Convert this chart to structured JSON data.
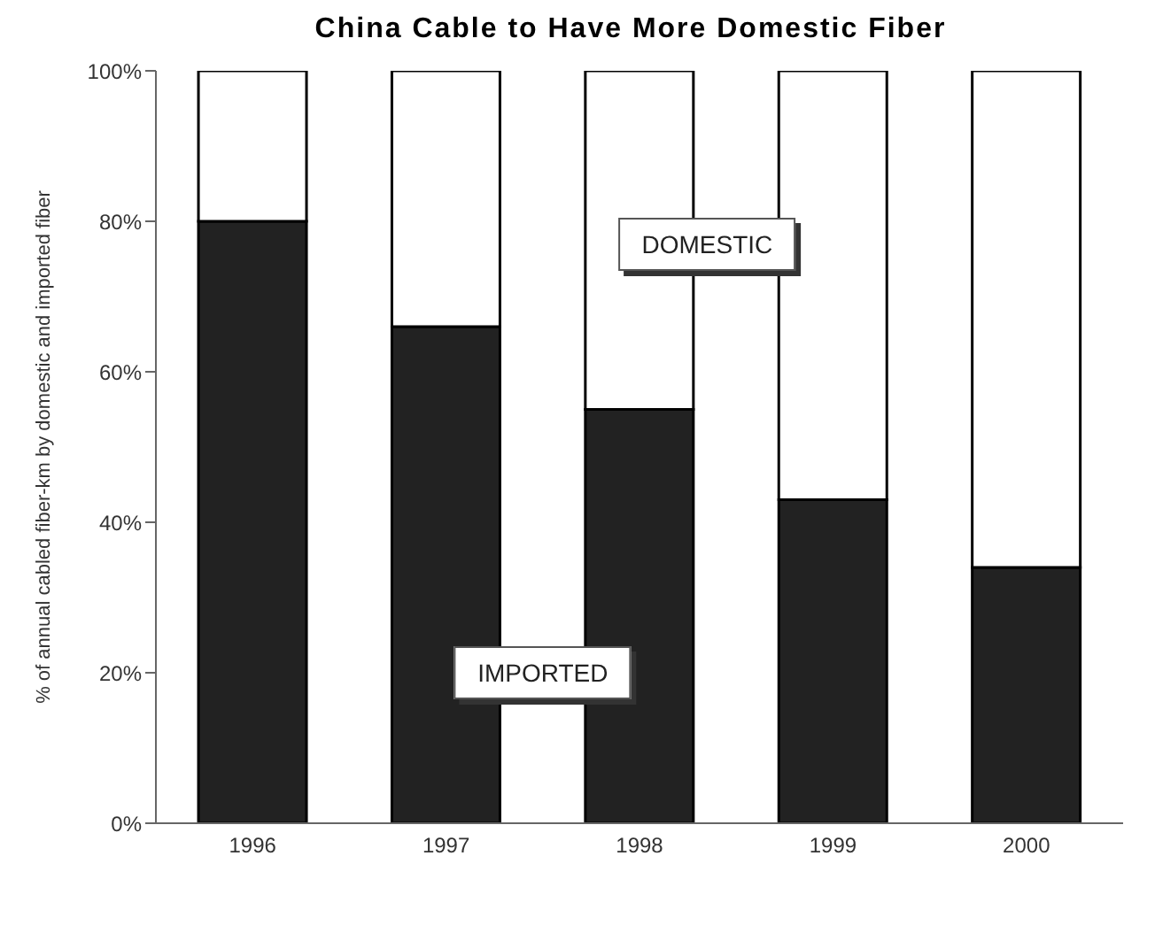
{
  "chart_data": {
    "type": "bar",
    "title": "China Cable to Have More Domestic Fiber",
    "ylabel": "% of annual cabled fiber-km by domestic and imported fiber",
    "categories": [
      "1996",
      "1997",
      "1998",
      "1999",
      "2000"
    ],
    "stacked": true,
    "series": [
      {
        "name": "IMPORTED",
        "color": "#222222",
        "values": [
          80,
          66,
          55,
          43,
          34
        ]
      },
      {
        "name": "DOMESTIC",
        "color": "#ffffff",
        "values": [
          20,
          34,
          45,
          57,
          66
        ]
      }
    ],
    "ylim": [
      0,
      100
    ],
    "yticks": [
      {
        "value": 0,
        "label": "0%"
      },
      {
        "value": 20,
        "label": "20%"
      },
      {
        "value": 40,
        "label": "40%"
      },
      {
        "value": 60,
        "label": "60%"
      },
      {
        "value": 80,
        "label": "80%"
      },
      {
        "value": 100,
        "label": "100%"
      }
    ],
    "grid": false,
    "legend": false
  }
}
